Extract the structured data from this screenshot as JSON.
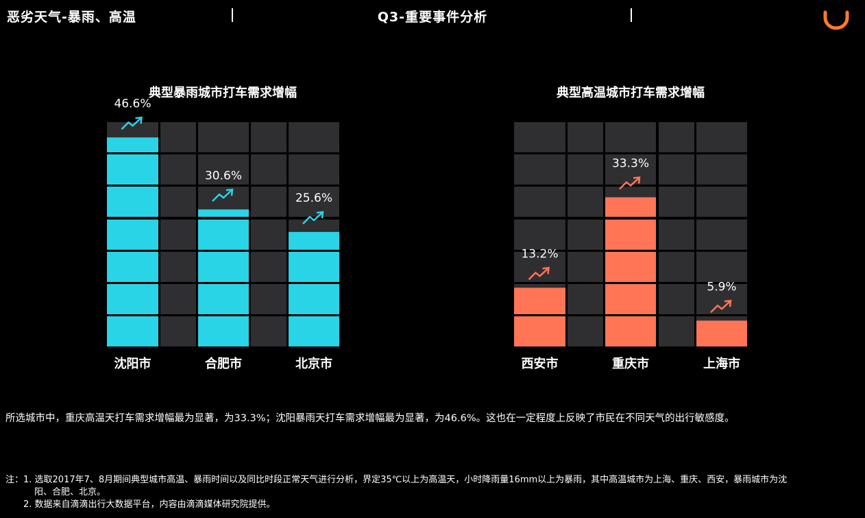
{
  "header": {
    "left_title": "恶劣天气-暴雨、高温",
    "center_title": "Q3-重要事件分析"
  },
  "colors": {
    "rain": "#29d4e6",
    "heat": "#ff7556",
    "cell": "#2f2f31",
    "background": "#000000"
  },
  "chart_data": [
    {
      "type": "bar",
      "title": "典型暴雨城市打车需求增幅",
      "categories": [
        "沈阳市",
        "合肥市",
        "北京市"
      ],
      "values": [
        46.6,
        30.6,
        25.6
      ],
      "value_labels": [
        "46.6%",
        "30.6%",
        "25.6%"
      ],
      "ylim": [
        0,
        50
      ],
      "color": "#29d4e6"
    },
    {
      "type": "bar",
      "title": "典型高温城市打车需求增幅",
      "categories": [
        "西安市",
        "重庆市",
        "上海市"
      ],
      "values": [
        13.2,
        33.3,
        5.9
      ],
      "value_labels": [
        "13.2%",
        "33.3%",
        "5.9%"
      ],
      "ylim": [
        0,
        50
      ],
      "color": "#ff7556"
    }
  ],
  "summary": "所选城市中，重庆高温天打车需求增幅最为显著，为33.3%；沈阳暴雨天打车需求增幅最为显著，为46.6%。这也在一定程度上反映了市民在不同天气的出行敏感度。",
  "notes": {
    "line1": "注：1. 选取2017年7、8月期间典型城市高温、暴雨时间以及同比时段正常天气进行分析，界定35℃以上为高温天，小时降雨量16mm以上为暴雨，其中高温城市为上海、重庆、西安，暴雨城市为沈",
    "line2": "阳、合肥、北京。",
    "line3": "2. 数据来自滴滴出行大数据平台，内容由滴滴媒体研究院提供。"
  }
}
